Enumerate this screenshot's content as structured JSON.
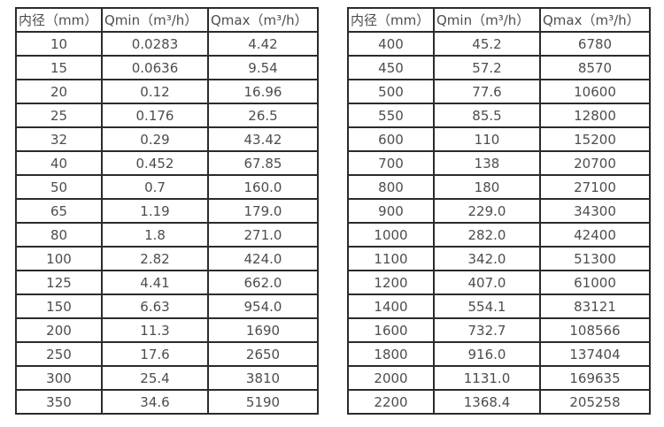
{
  "colors": {
    "background": "#ffffff",
    "border": "#2b2b2b",
    "text": "#4d4d4d"
  },
  "tables": [
    {
      "name": "flow-table-small-diameters",
      "headers": [
        "内径（mm）",
        "Qmin（m³/h）",
        "Qmax（m³/h）"
      ],
      "rows": [
        [
          "10",
          "0.0283",
          "4.42"
        ],
        [
          "15",
          "0.0636",
          "9.54"
        ],
        [
          "20",
          "0.12",
          "16.96"
        ],
        [
          "25",
          "0.176",
          "26.5"
        ],
        [
          "32",
          "0.29",
          "43.42"
        ],
        [
          "40",
          "0.452",
          "67.85"
        ],
        [
          "50",
          "0.7",
          "160.0"
        ],
        [
          "65",
          "1.19",
          "179.0"
        ],
        [
          "80",
          "1.8",
          "271.0"
        ],
        [
          "100",
          "2.82",
          "424.0"
        ],
        [
          "125",
          "4.41",
          "662.0"
        ],
        [
          "150",
          "6.63",
          "954.0"
        ],
        [
          "200",
          "11.3",
          "1690"
        ],
        [
          "250",
          "17.6",
          "2650"
        ],
        [
          "300",
          "25.4",
          "3810"
        ],
        [
          "350",
          "34.6",
          "5190"
        ]
      ]
    },
    {
      "name": "flow-table-large-diameters",
      "headers": [
        "内径（mm）",
        "Qmin（m³/h）",
        "Qmax（m³/h）"
      ],
      "rows": [
        [
          "400",
          "45.2",
          "6780"
        ],
        [
          "450",
          "57.2",
          "8570"
        ],
        [
          "500",
          "77.6",
          "10600"
        ],
        [
          "550",
          "85.5",
          "12800"
        ],
        [
          "600",
          "110",
          "15200"
        ],
        [
          "700",
          "138",
          "20700"
        ],
        [
          "800",
          "180",
          "27100"
        ],
        [
          "900",
          "229.0",
          "34300"
        ],
        [
          "1000",
          "282.0",
          "42400"
        ],
        [
          "1100",
          "342.0",
          "51300"
        ],
        [
          "1200",
          "407.0",
          "61000"
        ],
        [
          "1400",
          "554.1",
          "83121"
        ],
        [
          "1600",
          "732.7",
          "108566"
        ],
        [
          "1800",
          "916.0",
          "137404"
        ],
        [
          "2000",
          "1131.0",
          "169635"
        ],
        [
          "2200",
          "1368.4",
          "205258"
        ]
      ]
    }
  ]
}
